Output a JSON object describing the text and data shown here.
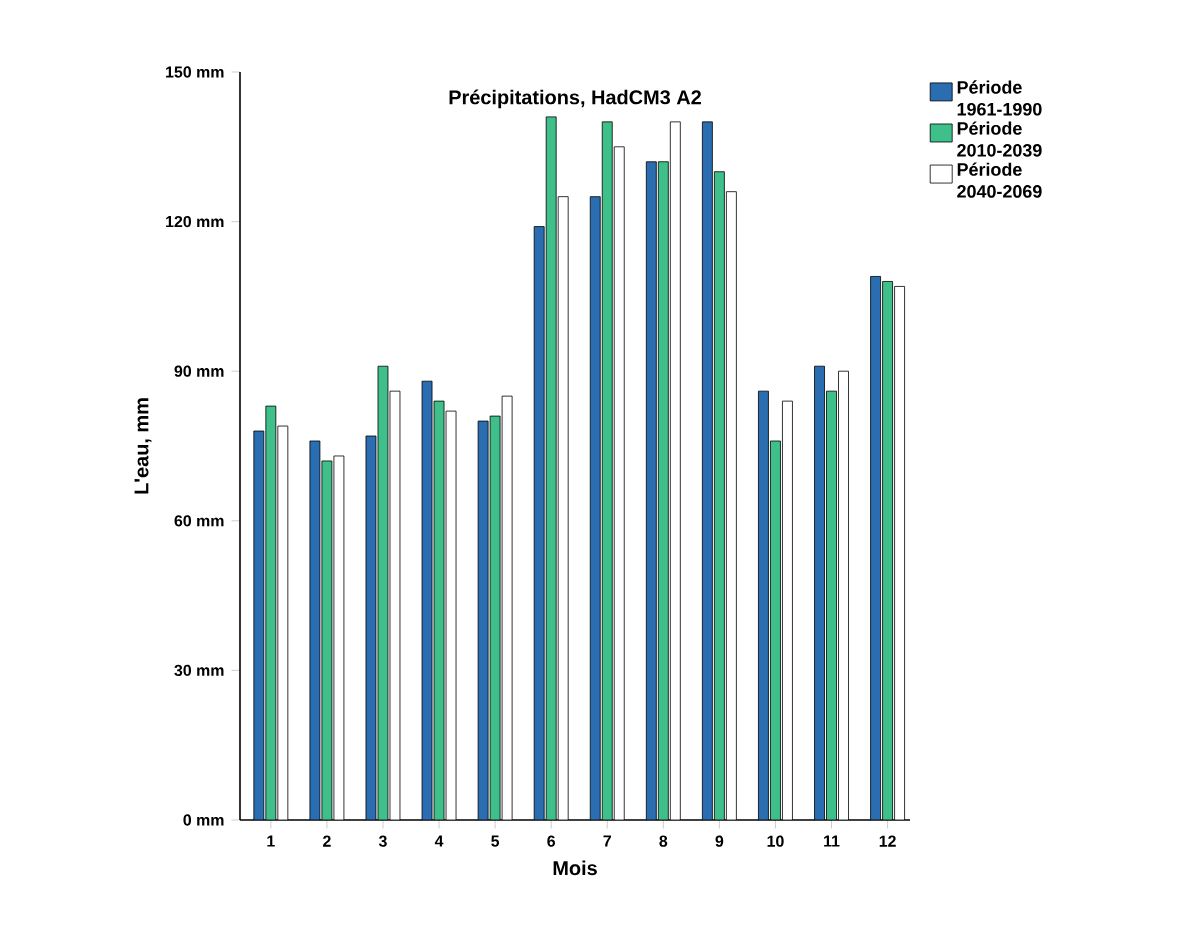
{
  "chart_data": {
    "type": "bar",
    "title": "Précipitations, HadCM3 A2",
    "xlabel": "Mois",
    "ylabel": "L'eau, mm",
    "categories": [
      "1",
      "2",
      "3",
      "4",
      "5",
      "6",
      "7",
      "8",
      "9",
      "10",
      "11",
      "12"
    ],
    "series": [
      {
        "name": "Période 1961-1990",
        "color": "#2a6db0",
        "values": [
          78,
          76,
          77,
          88,
          80,
          119,
          125,
          132,
          140,
          86,
          91,
          109
        ]
      },
      {
        "name": "Période 2010-2039",
        "color": "#3fbf8a",
        "values": [
          83,
          72,
          91,
          84,
          81,
          141,
          140,
          132,
          130,
          76,
          86,
          108
        ]
      },
      {
        "name": "Période 2040-2069",
        "color": "#ffffff",
        "values": [
          79,
          73,
          86,
          82,
          85,
          125,
          135,
          140,
          126,
          84,
          90,
          107
        ]
      }
    ],
    "ylim": [
      0,
      150
    ],
    "yticks": [
      {
        "value": 0,
        "label": "0 mm"
      },
      {
        "value": 30,
        "label": "30 mm"
      },
      {
        "value": 60,
        "label": "60 mm"
      },
      {
        "value": 90,
        "label": "90 mm"
      },
      {
        "value": 120,
        "label": "120 mm"
      },
      {
        "value": 150,
        "label": "150 mm"
      }
    ],
    "grid": false,
    "legend": "right"
  }
}
